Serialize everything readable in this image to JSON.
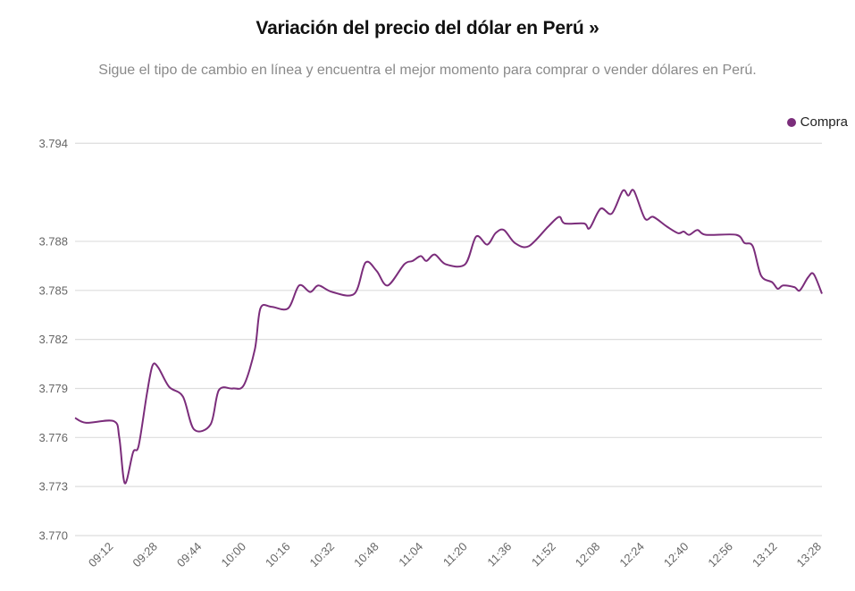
{
  "header": {
    "title": "Variación del precio del dólar en Perú »",
    "subtitle": "Sigue el tipo de cambio en línea y encuentra el mejor momento para comprar o vender dólares en Perú."
  },
  "chart_data": {
    "type": "line",
    "title": "Variación del precio del dólar en Perú »",
    "subtitle": "Sigue el tipo de cambio en línea y encuentra el mejor momento para comprar o vender dólares en Perú.",
    "xlabel": "",
    "ylabel": "",
    "legend_position": "top-right",
    "grid": true,
    "ylim": [
      3.77,
      3.794
    ],
    "xlim": [
      "08:58",
      "13:28"
    ],
    "y_ticks": [
      "3.770",
      "3.773",
      "3.776",
      "3.779",
      "3.782",
      "3.785",
      "3.788",
      "3.794"
    ],
    "x_ticks": [
      "09:12",
      "09:28",
      "09:44",
      "10:00",
      "10:16",
      "10:32",
      "10:48",
      "11:04",
      "11:20",
      "11:36",
      "11:52",
      "12:08",
      "12:24",
      "12:40",
      "12:56",
      "13:12",
      "13:28"
    ],
    "series": [
      {
        "name": "Compra",
        "color": "#7b2d7b",
        "x": [
          "08:58",
          "09:02",
          "09:12",
          "09:14",
          "09:16",
          "09:19",
          "09:21",
          "09:24",
          "09:26",
          "09:28",
          "09:32",
          "09:37",
          "09:41",
          "09:47",
          "09:50",
          "09:55",
          "09:59",
          "10:03",
          "10:05",
          "10:09",
          "10:15",
          "10:19",
          "10:23",
          "10:26",
          "10:31",
          "10:39",
          "10:43",
          "10:47",
          "10:51",
          "10:57",
          "11:00",
          "11:03",
          "11:05",
          "11:08",
          "11:12",
          "11:19",
          "11:23",
          "11:27",
          "11:30",
          "11:33",
          "11:37",
          "11:42",
          "11:49",
          "11:53",
          "11:55",
          "12:02",
          "12:04",
          "12:08",
          "12:12",
          "12:16",
          "12:18",
          "12:20",
          "12:24",
          "12:27",
          "12:32",
          "12:36",
          "12:38",
          "12:40",
          "12:43",
          "12:46",
          "12:57",
          "13:00",
          "13:03",
          "13:06",
          "13:10",
          "13:12",
          "13:14",
          "13:18",
          "13:20",
          "13:23",
          "13:25",
          "13:28"
        ],
        "values": [
          3.7772,
          3.7769,
          3.777,
          3.776,
          3.7732,
          3.7751,
          3.7755,
          3.7787,
          3.7804,
          3.7803,
          3.7791,
          3.7785,
          3.7765,
          3.7768,
          3.7789,
          3.779,
          3.7792,
          3.7814,
          3.7839,
          3.784,
          3.7839,
          3.7853,
          3.7849,
          3.7853,
          3.7849,
          3.7848,
          3.7867,
          3.7862,
          3.7853,
          3.7866,
          3.7868,
          3.7871,
          3.7868,
          3.7872,
          3.7866,
          3.7866,
          3.7883,
          3.7878,
          3.7885,
          3.7887,
          3.7879,
          3.7877,
          3.7889,
          3.7895,
          3.7891,
          3.7891,
          3.7888,
          3.79,
          3.7897,
          3.7911,
          3.7908,
          3.7911,
          3.7894,
          3.7895,
          3.7889,
          3.7885,
          3.7886,
          3.7884,
          3.7887,
          3.7884,
          3.7884,
          3.7879,
          3.7877,
          3.7859,
          3.7855,
          3.7851,
          3.7853,
          3.7852,
          3.785,
          3.7858,
          3.786,
          3.7848
        ]
      }
    ]
  }
}
